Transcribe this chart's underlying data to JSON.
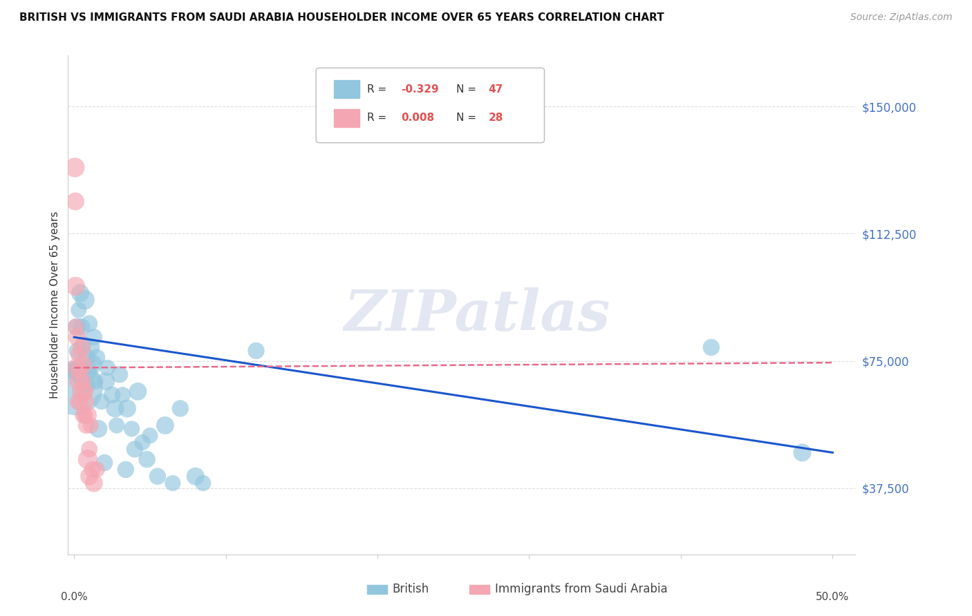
{
  "title": "BRITISH VS IMMIGRANTS FROM SAUDI ARABIA HOUSEHOLDER INCOME OVER 65 YEARS CORRELATION CHART",
  "source": "Source: ZipAtlas.com",
  "ylabel": "Householder Income Over 65 years",
  "watermark": "ZIPatlas",
  "ytick_labels": [
    "$37,500",
    "$75,000",
    "$112,500",
    "$150,000"
  ],
  "ytick_values": [
    37500,
    75000,
    112500,
    150000
  ],
  "ymin": 18000,
  "ymax": 165000,
  "xmin": -0.004,
  "xmax": 0.515,
  "legend_r_british": "-0.329",
  "legend_n_british": "47",
  "legend_r_saudi": "0.008",
  "legend_n_saudi": "28",
  "british_color": "#92C5DE",
  "saudi_color": "#F4A6B2",
  "trendline_british_color": "#1A56CC",
  "trendline_saudi_color": "#E8688A",
  "british_scatter_x": [
    0.001,
    0.002,
    0.002,
    0.003,
    0.003,
    0.004,
    0.005,
    0.005,
    0.006,
    0.007,
    0.008,
    0.009,
    0.01,
    0.01,
    0.011,
    0.012,
    0.013,
    0.014,
    0.015,
    0.016,
    0.018,
    0.02,
    0.021,
    0.022,
    0.025,
    0.027,
    0.028,
    0.03,
    0.032,
    0.034,
    0.035,
    0.038,
    0.04,
    0.042,
    0.045,
    0.048,
    0.05,
    0.055,
    0.06,
    0.065,
    0.07,
    0.08,
    0.085,
    0.12,
    0.42,
    0.48,
    0.001
  ],
  "british_scatter_y": [
    72000,
    85000,
    78000,
    90000,
    72000,
    95000,
    85000,
    70000,
    80000,
    93000,
    76000,
    68000,
    86000,
    72000,
    79000,
    74000,
    82000,
    69000,
    76000,
    55000,
    63000,
    45000,
    69000,
    73000,
    65000,
    61000,
    56000,
    71000,
    65000,
    43000,
    61000,
    55000,
    49000,
    66000,
    51000,
    46000,
    53000,
    41000,
    56000,
    39000,
    61000,
    41000,
    39000,
    78000,
    79000,
    48000,
    67000
  ],
  "british_scatter_size": [
    400,
    350,
    300,
    280,
    480,
    350,
    320,
    350,
    280,
    420,
    350,
    280,
    310,
    280,
    350,
    420,
    310,
    280,
    310,
    350,
    280,
    310,
    350,
    280,
    310,
    350,
    280,
    310,
    280,
    310,
    350,
    280,
    310,
    350,
    280,
    310,
    280,
    310,
    350,
    280,
    310,
    350,
    280,
    310,
    310,
    350,
    3200
  ],
  "saudi_scatter_x": [
    0.0005,
    0.0008,
    0.001,
    0.001,
    0.002,
    0.002,
    0.003,
    0.003,
    0.003,
    0.004,
    0.004,
    0.005,
    0.005,
    0.006,
    0.006,
    0.006,
    0.007,
    0.007,
    0.008,
    0.008,
    0.009,
    0.009,
    0.01,
    0.01,
    0.011,
    0.012,
    0.013,
    0.015
  ],
  "saudi_scatter_y": [
    132000,
    122000,
    97000,
    85000,
    82000,
    73000,
    77000,
    69000,
    63000,
    72000,
    63000,
    79000,
    66000,
    74000,
    69000,
    59000,
    66000,
    59000,
    63000,
    56000,
    59000,
    46000,
    49000,
    41000,
    56000,
    43000,
    39000,
    43000
  ],
  "saudi_scatter_size": [
    420,
    350,
    390,
    300,
    350,
    420,
    300,
    390,
    350,
    280,
    300,
    350,
    420,
    350,
    280,
    300,
    350,
    300,
    280,
    300,
    350,
    420,
    300,
    350,
    280,
    300,
    350,
    280
  ],
  "british_trend_x": [
    0.0,
    0.5
  ],
  "british_trend_y": [
    82000,
    48000
  ],
  "saudi_trend_x": [
    0.0,
    0.5
  ],
  "saudi_trend_y": [
    73000,
    74500
  ],
  "grid_color": "#dddddd",
  "spine_color": "#cccccc",
  "right_label_color": "#4472C4",
  "title_fontsize": 11,
  "source_fontsize": 10,
  "ylabel_fontsize": 11,
  "ytick_fontsize": 12,
  "legend_fontsize": 11,
  "watermark_fontsize": 60,
  "watermark_color": "#d0d8e8",
  "watermark_alpha": 0.6
}
